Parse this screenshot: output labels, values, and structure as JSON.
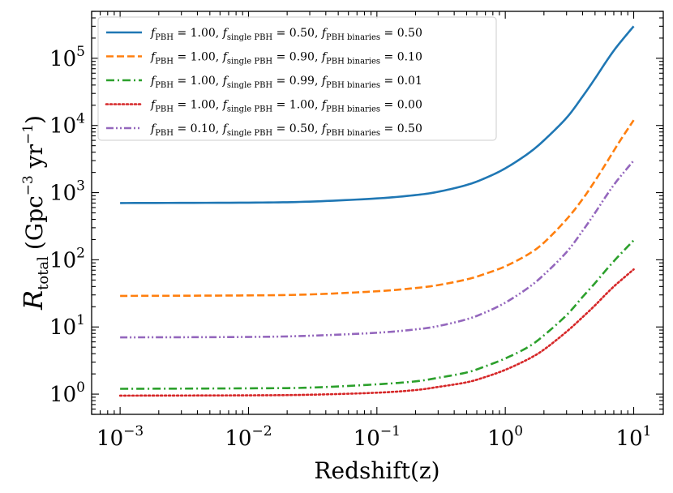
{
  "chart_data": {
    "type": "line",
    "title": "",
    "xlabel": "Redshift(z)",
    "ylabel": "R_total (Gpc^-3 yr^-1)",
    "ylabel_parts": {
      "symbol": "R",
      "subscript": "total",
      "unit_open": "(Gpc",
      "unit_exp1": "−3",
      "unit_mid": " yr",
      "unit_exp2": "−1",
      "unit_close": ")"
    },
    "xscale": "log",
    "yscale": "log",
    "xlim": [
      0.0006,
      17
    ],
    "ylim": [
      0.5,
      500000
    ],
    "grid": false,
    "legend_position": "top-left",
    "x_ticks": [
      {
        "value": 0.001,
        "base": "10",
        "exp": "−3"
      },
      {
        "value": 0.01,
        "base": "10",
        "exp": "−2"
      },
      {
        "value": 0.1,
        "base": "10",
        "exp": "−1"
      },
      {
        "value": 1,
        "base": "10",
        "exp": "0"
      },
      {
        "value": 10,
        "base": "10",
        "exp": "1"
      }
    ],
    "y_ticks": [
      {
        "value": 1,
        "base": "10",
        "exp": "0"
      },
      {
        "value": 10,
        "base": "10",
        "exp": "1"
      },
      {
        "value": 100,
        "base": "10",
        "exp": "2"
      },
      {
        "value": 1000,
        "base": "10",
        "exp": "3"
      },
      {
        "value": 10000,
        "base": "10",
        "exp": "4"
      },
      {
        "value": 100000,
        "base": "10",
        "exp": "5"
      }
    ],
    "x": [
      0.001,
      0.01,
      0.03,
      0.1,
      0.2,
      0.3,
      0.5,
      0.7,
      1.0,
      1.5,
      2,
      3,
      4,
      5,
      6,
      7,
      8,
      10
    ],
    "series": [
      {
        "name": "f_PBH = 1.00, f_single PBH = 0.50, f_PBH binaries = 0.50",
        "legend": {
          "v1": "1.00",
          "v2": "0.50",
          "v3": "0.50"
        },
        "color": "#1f77b4",
        "dash": "solid",
        "values": [
          700,
          710,
          735,
          820,
          920,
          1030,
          1300,
          1650,
          2300,
          3800,
          6000,
          13000,
          27000,
          50000,
          85000,
          130000,
          180000,
          300000
        ]
      },
      {
        "name": "f_PBH = 1.00, f_single PBH = 0.90, f_PBH binaries = 0.10",
        "legend": {
          "v1": "1.00",
          "v2": "0.90",
          "v3": "0.10"
        },
        "color": "#ff7f0e",
        "dash": "dashed",
        "values": [
          29,
          29.5,
          30.5,
          34,
          38,
          42,
          51,
          62,
          80,
          120,
          180,
          400,
          800,
          1500,
          2600,
          4200,
          6300,
          12000
        ]
      },
      {
        "name": "f_PBH = 1.00, f_single PBH = 0.99, f_PBH binaries = 0.01",
        "legend": {
          "v1": "1.00",
          "v2": "0.99",
          "v3": "0.01"
        },
        "color": "#2ca02c",
        "dash": "dashdot",
        "values": [
          1.2,
          1.22,
          1.25,
          1.4,
          1.55,
          1.75,
          2.1,
          2.6,
          3.4,
          5,
          7.5,
          15,
          28,
          45,
          68,
          95,
          125,
          195
        ]
      },
      {
        "name": "f_PBH = 1.00, f_single PBH = 1.00, f_PBH binaries = 0.00",
        "legend": {
          "v1": "1.00",
          "v2": "1.00",
          "v3": "0.00"
        },
        "color": "#d62728",
        "dash": "dotted",
        "values": [
          0.95,
          0.96,
          0.98,
          1.05,
          1.15,
          1.28,
          1.5,
          1.8,
          2.3,
          3.3,
          4.6,
          8.5,
          14,
          21,
          30,
          40,
          50,
          72
        ]
      },
      {
        "name": "f_PBH = 0.10, f_single PBH = 0.50, f_PBH binaries = 0.50",
        "legend": {
          "v1": "0.10",
          "v2": "0.50",
          "v3": "0.50"
        },
        "color": "#9467bd",
        "dash": "dashdotdot",
        "values": [
          7,
          7.1,
          7.4,
          8.2,
          9.2,
          10.3,
          13,
          16.5,
          23,
          38,
          60,
          130,
          270,
          500,
          850,
          1300,
          1800,
          3000
        ]
      }
    ]
  }
}
